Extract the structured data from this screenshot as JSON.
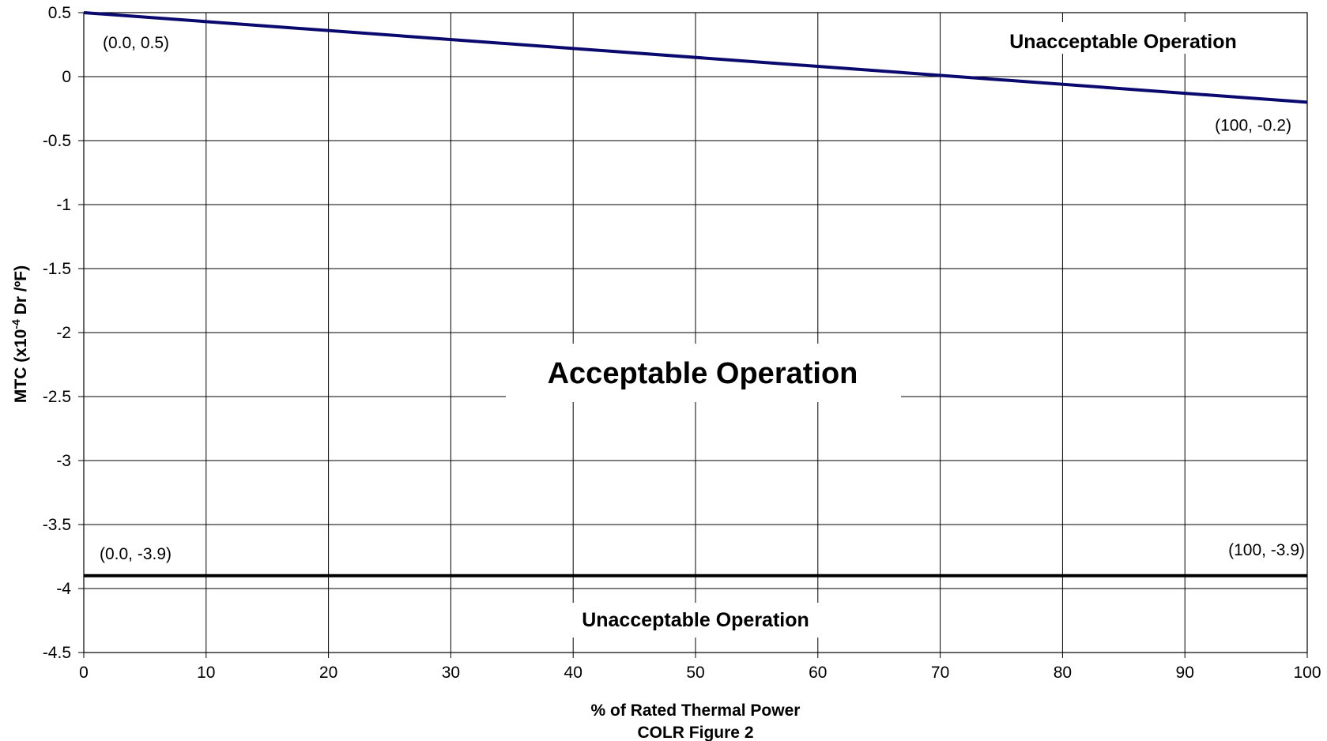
{
  "chart_data": {
    "type": "line",
    "title": "",
    "xlabel": "% of Rated Thermal Power",
    "caption": "COLR Figure 2",
    "ylabel_main": "MTC (x10",
    "ylabel_exp": "-4",
    "ylabel_tail": " Dr /ºF)",
    "xlim": [
      0,
      100
    ],
    "ylim": [
      -4.5,
      0.5
    ],
    "grid": true,
    "x_ticks": [
      0,
      10,
      20,
      30,
      40,
      50,
      60,
      70,
      80,
      90,
      100
    ],
    "y_ticks": [
      0.5,
      0,
      -0.5,
      -1,
      -1.5,
      -2,
      -2.5,
      -3,
      -3.5,
      -4,
      -4.5
    ],
    "series": [
      {
        "points": [
          [
            0,
            0.5
          ],
          [
            100,
            -0.2
          ]
        ],
        "color": "#0a0a6e"
      },
      {
        "points": [
          [
            0,
            -3.9
          ],
          [
            100,
            -3.9
          ]
        ],
        "color": "#000000"
      }
    ],
    "point_labels": [
      {
        "text": "(0.0, 0.5)",
        "x": 0,
        "y": 0.5
      },
      {
        "text": "(100, -0.2)",
        "x": 100,
        "y": -0.2
      },
      {
        "text": "(0.0, -3.9)",
        "x": 0,
        "y": -3.9
      },
      {
        "text": "(100, -3.9)",
        "x": 100,
        "y": -3.9
      }
    ],
    "regions": {
      "upper": "Unacceptable Operation",
      "middle": "Acceptable Operation",
      "lower": "Unacceptable Operation"
    }
  }
}
